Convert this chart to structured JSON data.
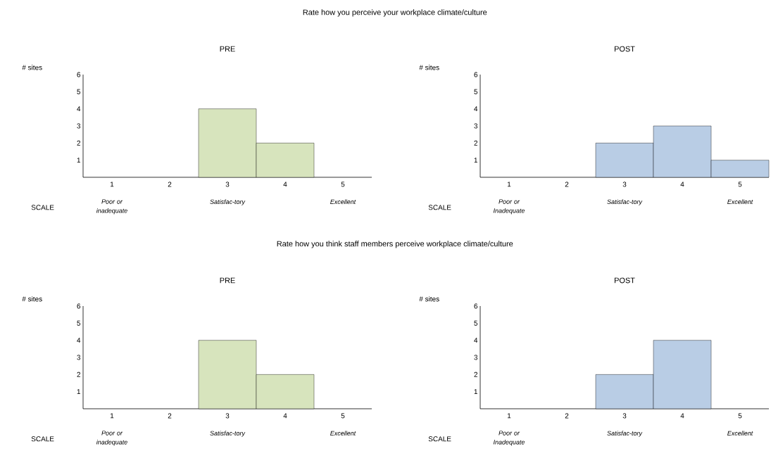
{
  "chart_data": [
    {
      "type": "bar",
      "title": "Rate how you perceive your workplace climate/culture",
      "subtitle": "PRE",
      "xlabel": "SCALE",
      "ylabel": "# sites",
      "categories": [
        "1",
        "2",
        "3",
        "4",
        "5"
      ],
      "values": [
        0,
        0,
        4,
        2,
        0
      ],
      "color": "#d7e4bd",
      "ylim": [
        0,
        6
      ],
      "yticks": [
        1,
        2,
        3,
        4,
        5,
        6
      ],
      "annotations": [
        "Poor or inadequate",
        "Satisfac-tory",
        "Excellent"
      ]
    },
    {
      "type": "bar",
      "subtitle": "POST",
      "xlabel": "SCALE",
      "ylabel": "# sites",
      "categories": [
        "1",
        "2",
        "3",
        "4",
        "5"
      ],
      "values": [
        0,
        0,
        2,
        3,
        1
      ],
      "color": "#b9cde5",
      "ylim": [
        0,
        6
      ],
      "yticks": [
        1,
        2,
        3,
        4,
        5,
        6
      ],
      "annotations": [
        "Poor or Inadequate",
        "Satisfac-tory",
        "Excellent"
      ]
    },
    {
      "type": "bar",
      "title": "Rate how you think staff members perceive workplace climate/culture",
      "subtitle": "PRE",
      "xlabel": "SCALE",
      "ylabel": "# sites",
      "categories": [
        "1",
        "2",
        "3",
        "4",
        "5"
      ],
      "values": [
        0,
        0,
        4,
        2,
        0
      ],
      "color": "#d7e4bd",
      "ylim": [
        0,
        6
      ],
      "yticks": [
        1,
        2,
        3,
        4,
        5,
        6
      ],
      "annotations": [
        "Poor or inadequate",
        "Satisfac-tory",
        "Excellent"
      ]
    },
    {
      "type": "bar",
      "subtitle": "POST",
      "xlabel": "SCALE",
      "ylabel": "# sites",
      "categories": [
        "1",
        "2",
        "3",
        "4",
        "5"
      ],
      "values": [
        0,
        0,
        2,
        4,
        0
      ],
      "color": "#b9cde5",
      "ylim": [
        0,
        6
      ],
      "yticks": [
        1,
        2,
        3,
        4,
        5,
        6
      ],
      "annotations": [
        "Poor or Inadequate",
        "Satisfac-tory",
        "Excellent"
      ]
    }
  ]
}
